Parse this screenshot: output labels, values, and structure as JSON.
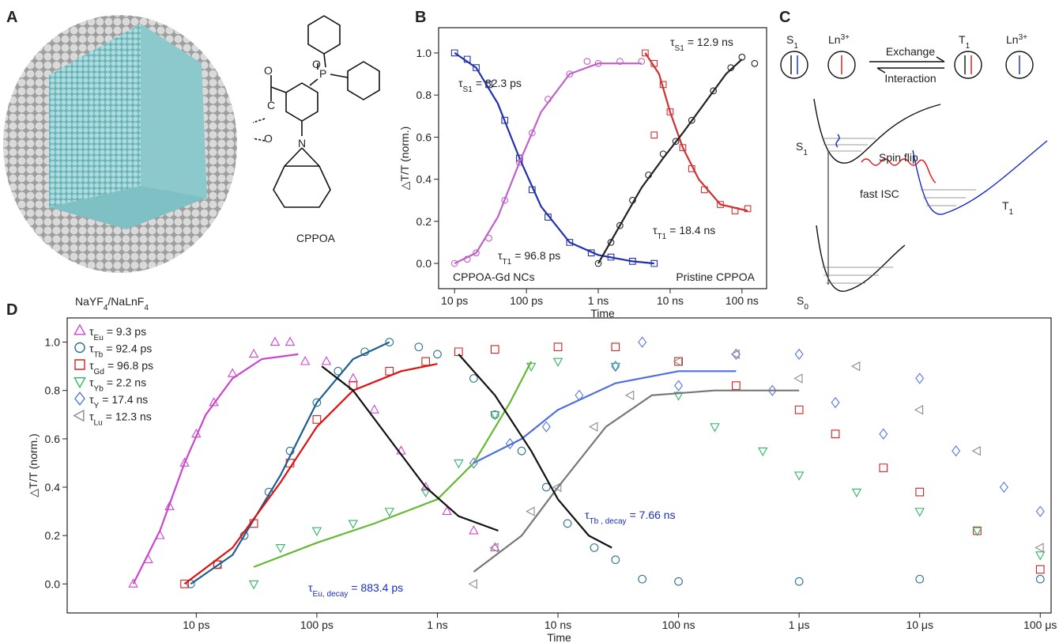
{
  "panel_a": {
    "letter": "A",
    "molecule": "CPPOA",
    "atoms": [
      "O",
      "P",
      "O",
      "C",
      "O",
      "N"
    ],
    "material": [
      "NaYF",
      "4",
      "/NaLnF",
      "4"
    ]
  },
  "panel_c": {
    "letter": "C",
    "states": [
      {
        "base": "S",
        "sub": "1"
      },
      {
        "base": "Ln",
        "sup": "3+"
      },
      {
        "base": "T",
        "sub": "1"
      },
      {
        "base": "Ln",
        "sup": "3+"
      }
    ],
    "exchange": "Exchange",
    "interaction": "Interaction",
    "levels": [
      {
        "base": "S",
        "sub": "1"
      },
      {
        "base": "T",
        "sub": "1"
      },
      {
        "base": "S",
        "sub": "0"
      }
    ],
    "spin_flip": "Spin flip",
    "fast_isc": "fast ISC"
  },
  "chart_data": [
    {
      "type": "scatter",
      "letter": "B",
      "x_label": "Time",
      "y_label": "△T/T (norm.)",
      "xscale": "log",
      "tau_symbol": "τ",
      "xlim": [
        6,
        220000
      ],
      "ylim": [
        -0.12,
        1.12
      ],
      "xticks": [
        {
          "value": 10,
          "label": "10 ps"
        },
        {
          "value": 100,
          "label": "100 ps"
        },
        {
          "value": 1000,
          "label": "1 ns"
        },
        {
          "value": 10000,
          "label": "10 ns"
        },
        {
          "value": 100000,
          "label": "100 ns"
        }
      ],
      "yticks": [
        {
          "value": 0,
          "label": "0.0"
        },
        0.2,
        0.4,
        0.6,
        0.8,
        {
          "value": 1,
          "label": "1.0"
        }
      ],
      "annotations": [
        {
          "sub": "S1",
          "text": "= 82.3 ps"
        },
        {
          "sub": "T1",
          "text": "= 96.8 ps"
        },
        {
          "sub": "S1",
          "text": "= 12.9 ns"
        },
        {
          "sub": "T1",
          "text": "= 18.4 ns"
        }
      ],
      "notes": [
        "CPPOA-Gd NCs",
        "Pristine CPPOA"
      ],
      "series": [
        {
          "mode": "markers",
          "marker": "square",
          "color": "#2233a0",
          "x": [
            10,
            15,
            20,
            30,
            50,
            80,
            120,
            200,
            400,
            800,
            1500,
            3000,
            6000
          ],
          "values": [
            1.0,
            0.97,
            0.93,
            0.85,
            0.68,
            0.5,
            0.35,
            0.22,
            0.1,
            0.05,
            0.03,
            0.01,
            0.0
          ]
        },
        {
          "mode": "markers",
          "marker": "circle",
          "color": "#c060c8",
          "x": [
            10,
            15,
            20,
            30,
            50,
            80,
            120,
            200,
            400,
            700,
            1000,
            2000,
            4000
          ],
          "values": [
            0.0,
            0.02,
            0.05,
            0.12,
            0.3,
            0.48,
            0.62,
            0.78,
            0.9,
            0.96,
            0.95,
            0.96,
            0.96
          ]
        },
        {
          "mode": "markers",
          "marker": "square",
          "color": "#d03030",
          "x": [
            4500,
            6000,
            8000,
            10000,
            15000,
            20000,
            30000,
            50000,
            80000,
            120000,
            6000
          ],
          "values": [
            1.0,
            0.95,
            0.85,
            0.72,
            0.55,
            0.45,
            0.35,
            0.28,
            0.25,
            0.26,
            0.61
          ]
        },
        {
          "mode": "markers",
          "marker": "circle",
          "color": "#222222",
          "x": [
            1000,
            1500,
            2000,
            3000,
            5000,
            8000,
            12000,
            20000,
            40000,
            70000,
            100000,
            150000
          ],
          "values": [
            0.0,
            0.1,
            0.18,
            0.3,
            0.42,
            0.52,
            0.58,
            0.68,
            0.82,
            0.93,
            0.98,
            0.95
          ]
        },
        {
          "mode": "line",
          "color": "#2030b0",
          "x": [
            10,
            20,
            40,
            80,
            160,
            400,
            1000,
            3000,
            6000
          ],
          "values": [
            1.0,
            0.93,
            0.76,
            0.5,
            0.27,
            0.1,
            0.04,
            0.01,
            0.0
          ]
        },
        {
          "mode": "line",
          "color": "#c060c8",
          "x": [
            10,
            20,
            40,
            80,
            160,
            400,
            1000,
            4000
          ],
          "values": [
            0.0,
            0.05,
            0.22,
            0.48,
            0.72,
            0.9,
            0.95,
            0.95
          ]
        },
        {
          "mode": "line",
          "color": "#d03030",
          "x": [
            4500,
            7000,
            10000,
            15000,
            25000,
            50000,
            120000
          ],
          "values": [
            1.0,
            0.9,
            0.72,
            0.55,
            0.4,
            0.28,
            0.25
          ]
        },
        {
          "mode": "line",
          "color": "#222222",
          "x": [
            1000,
            2000,
            4000,
            8000,
            15000,
            30000,
            60000,
            100000
          ],
          "values": [
            0.0,
            0.18,
            0.36,
            0.5,
            0.62,
            0.76,
            0.9,
            0.97
          ]
        }
      ]
    },
    {
      "type": "scatter",
      "letter": "D",
      "x_label": "Time",
      "y_label": "△T/T (norm.)",
      "xscale": "log",
      "tau_symbol": "τ",
      "xlim": [
        0.85,
        123000000
      ],
      "ylim": [
        -0.12,
        1.1
      ],
      "xticks": [
        {
          "value": 10,
          "label": "10 ps"
        },
        {
          "value": 100,
          "label": "100 ps"
        },
        {
          "value": 1000,
          "label": "1 ns"
        },
        {
          "value": 10000,
          "label": "10 ns"
        },
        {
          "value": 100000,
          "label": "100 ns"
        },
        {
          "value": 1000000,
          "label": "1 μs"
        },
        {
          "value": 10000000,
          "label": "10 μs"
        },
        {
          "value": 100000000,
          "label": "100 μs"
        }
      ],
      "yticks": [
        {
          "value": 0,
          "label": "0.0"
        },
        0.2,
        0.4,
        0.6,
        0.8,
        {
          "value": 1,
          "label": "1.0"
        }
      ],
      "annotation_color": "#1a2fb5",
      "annotations": [
        {
          "sub": "Eu, decay",
          "text": "= 883.4 ps"
        },
        {
          "sub": "Tb , decay",
          "text": "= 7.66 ns"
        }
      ],
      "series": [
        {
          "name": {
            "sub": "Eu",
            "text": "= 9.3 ps"
          },
          "mode": "markers",
          "marker": "triangle-up",
          "color": "#cc44cc",
          "x": [
            3,
            4,
            5,
            6,
            8,
            10,
            14,
            20,
            30,
            45,
            60,
            80,
            120,
            200,
            300,
            500,
            800,
            1200,
            2000,
            3000
          ],
          "values": [
            0,
            0.1,
            0.2,
            0.32,
            0.5,
            0.62,
            0.75,
            0.87,
            0.95,
            1.0,
            1.0,
            0.92,
            0.92,
            0.85,
            0.72,
            0.55,
            0.4,
            0.3,
            0.22,
            0.15
          ]
        },
        {
          "name": {
            "sub": "Tb",
            "text": "= 92.4 ps"
          },
          "mode": "markers",
          "marker": "circle",
          "color": "#2b6e8f",
          "x": [
            9,
            15,
            25,
            40,
            60,
            100,
            150,
            250,
            400,
            700,
            1000,
            2000,
            3000,
            5000,
            8000,
            12000,
            20000,
            30000,
            50000,
            100000,
            1000000,
            10000000,
            100000000
          ],
          "values": [
            0,
            0.08,
            0.2,
            0.38,
            0.55,
            0.75,
            0.88,
            0.96,
            1.0,
            0.98,
            0.95,
            0.85,
            0.7,
            0.55,
            0.4,
            0.25,
            0.15,
            0.1,
            0.02,
            0.01,
            0.01,
            0.02,
            0.02
          ]
        },
        {
          "name": {
            "sub": "Gd",
            "text": "= 96.8 ps"
          },
          "mode": "markers",
          "marker": "square",
          "color": "#d42020",
          "x": [
            8,
            15,
            30,
            60,
            100,
            200,
            400,
            800,
            1500,
            3000,
            10000,
            30000,
            100000,
            300000,
            1000000,
            2000000,
            5000000,
            10000000,
            30000000,
            100000000
          ],
          "values": [
            0,
            0.08,
            0.25,
            0.5,
            0.68,
            0.82,
            0.88,
            0.92,
            0.96,
            0.97,
            0.98,
            0.98,
            0.92,
            0.82,
            0.72,
            0.62,
            0.48,
            0.38,
            0.22,
            0.06
          ]
        },
        {
          "name": {
            "sub": "Yb",
            "text": "= 2.2 ns"
          },
          "mode": "markers",
          "marker": "triangle-down",
          "color": "#33b366",
          "x": [
            30,
            50,
            100,
            200,
            400,
            800,
            1500,
            3000,
            6000,
            10000,
            30000,
            100000,
            200000,
            500000,
            1000000,
            3000000,
            10000000,
            30000000,
            100000000
          ],
          "values": [
            0,
            0.15,
            0.22,
            0.25,
            0.3,
            0.38,
            0.5,
            0.7,
            0.9,
            0.92,
            0.9,
            0.78,
            0.65,
            0.55,
            0.45,
            0.38,
            0.3,
            0.22,
            0.12
          ]
        },
        {
          "name": {
            "sub": "Y",
            "text": "= 17.4 ns"
          },
          "mode": "markers",
          "marker": "diamond",
          "color": "#5577dd",
          "x": [
            2000,
            4000,
            8000,
            15000,
            30000,
            50000,
            100000,
            300000,
            600000,
            1000000,
            2000000,
            5000000,
            10000000,
            20000000,
            50000000,
            100000000
          ],
          "values": [
            0.5,
            0.58,
            0.65,
            0.78,
            0.9,
            1.0,
            0.82,
            0.95,
            0.8,
            0.95,
            0.75,
            0.62,
            0.85,
            0.55,
            0.4,
            0.3
          ]
        },
        {
          "name": {
            "sub": "Lu",
            "text": "= 12.3 ns"
          },
          "mode": "markers",
          "marker": "triangle-left",
          "color": "#8a8a8a",
          "x": [
            2000,
            3000,
            6000,
            10000,
            20000,
            40000,
            100000,
            300000,
            1000000,
            3000000,
            10000000,
            30000000,
            100000000
          ],
          "values": [
            0,
            0.15,
            0.3,
            0.4,
            0.65,
            0.78,
            0.92,
            0.95,
            0.85,
            0.9,
            0.72,
            0.55,
            0.15
          ]
        },
        {
          "mode": "line",
          "color": "#cc44cc",
          "x": [
            3,
            5,
            8,
            12,
            20,
            35,
            70
          ],
          "values": [
            0,
            0.22,
            0.5,
            0.7,
            0.85,
            0.93,
            0.95
          ]
        },
        {
          "mode": "line",
          "color": "#1f5f90",
          "x": [
            9,
            20,
            50,
            100,
            200,
            400
          ],
          "values": [
            0,
            0.12,
            0.45,
            0.75,
            0.93,
            1.0
          ]
        },
        {
          "mode": "line",
          "color": "#e01010",
          "x": [
            8,
            20,
            50,
            100,
            200,
            500,
            1000
          ],
          "values": [
            0,
            0.15,
            0.42,
            0.65,
            0.8,
            0.88,
            0.91
          ]
        },
        {
          "mode": "line",
          "color": "#66b832",
          "x": [
            30,
            100,
            300,
            1000,
            2000,
            4000,
            6000
          ],
          "values": [
            0.07,
            0.17,
            0.25,
            0.35,
            0.5,
            0.75,
            0.92
          ]
        },
        {
          "mode": "line",
          "color": "#4f6fe0",
          "x": [
            2000,
            5000,
            10000,
            30000,
            100000,
            300000
          ],
          "values": [
            0.5,
            0.6,
            0.72,
            0.83,
            0.88,
            0.88
          ]
        },
        {
          "mode": "line",
          "color": "#777777",
          "x": [
            2000,
            5000,
            10000,
            25000,
            60000,
            200000,
            1000000
          ],
          "values": [
            0.05,
            0.2,
            0.4,
            0.65,
            0.78,
            0.8,
            0.8
          ]
        },
        {
          "mode": "line",
          "color": "#111111",
          "x": [
            110,
            200,
            400,
            800,
            1500,
            3200
          ],
          "values": [
            0.9,
            0.8,
            0.6,
            0.4,
            0.28,
            0.22
          ]
        },
        {
          "mode": "line",
          "color": "#111111",
          "x": [
            1500,
            3000,
            6000,
            10000,
            18000,
            28000
          ],
          "values": [
            0.95,
            0.78,
            0.55,
            0.35,
            0.2,
            0.15
          ]
        }
      ]
    }
  ]
}
